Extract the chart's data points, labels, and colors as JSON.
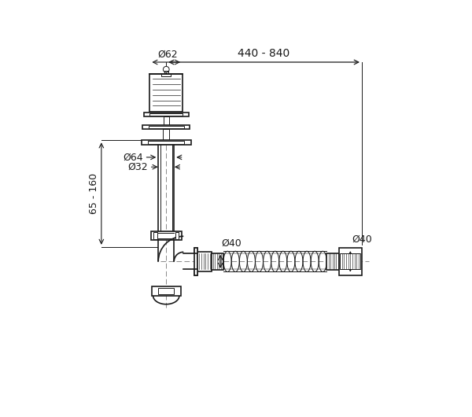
{
  "bg_color": "#ffffff",
  "line_color": "#1a1a1a",
  "dim_color": "#1a1a1a",
  "centerline_color": "#777777",
  "dim_440_840": "440 - 840",
  "dim_62": "Ø62",
  "dim_64": "Ø64",
  "dim_32": "Ø32",
  "dim_40_left": "Ø40",
  "dim_40_right": "Ø40",
  "dim_65_160": "65 - 160",
  "font_size_dim": 9,
  "lw": 1.2,
  "lw_thin": 0.7
}
